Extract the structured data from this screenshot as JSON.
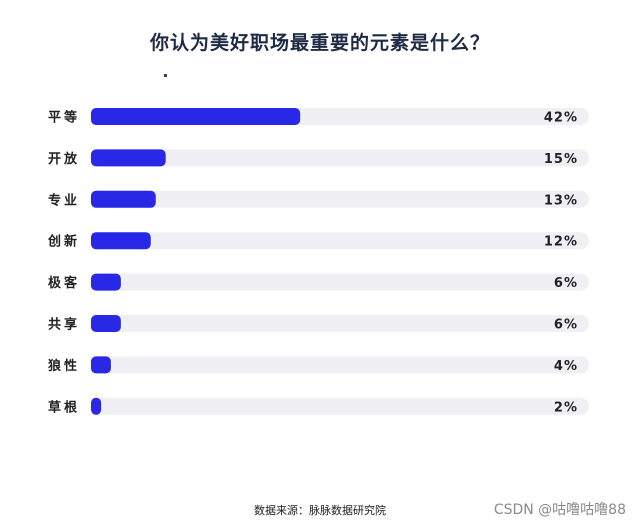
{
  "chart_data": {
    "type": "bar",
    "orientation": "horizontal",
    "title": "你认为美好职场最重要的元素是什么？",
    "categories": [
      "平等",
      "开放",
      "专业",
      "创新",
      "极客",
      "共享",
      "狼性",
      "草根"
    ],
    "values": [
      42,
      15,
      13,
      12,
      6,
      6,
      4,
      2
    ],
    "value_labels": [
      "42%",
      "15%",
      "13%",
      "12%",
      "6%",
      "6%",
      "4%",
      "2%"
    ],
    "xlim": [
      0,
      100
    ],
    "grid": false,
    "legend": "none"
  },
  "colors": {
    "bar": "#2828e6",
    "track": "#efeff4",
    "text": "#1f2a44"
  },
  "source": "数据来源：脉脉数据研究院",
  "watermark": "CSDN @咕噜咕噜88"
}
